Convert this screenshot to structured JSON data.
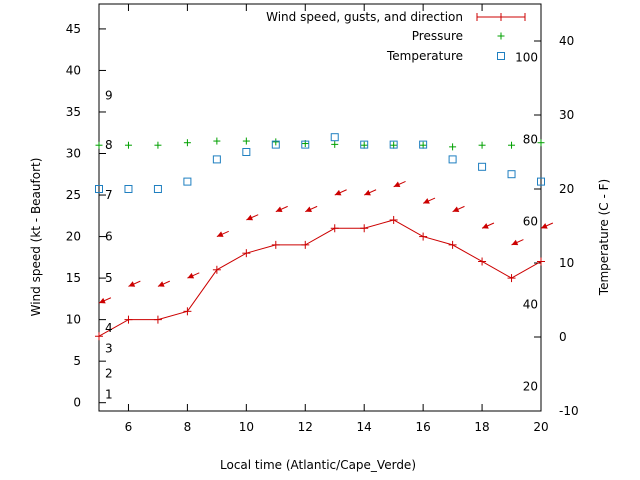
{
  "chart_data": {
    "type": "line",
    "xlabel": "Local time (Atlantic/Cape_Verde)",
    "ylabel": "Wind speed (kt - Beaufort)",
    "y2label": "Temperature (C - F)",
    "xlim": [
      5,
      20
    ],
    "ylim": [
      -1,
      48
    ],
    "y2lim": [
      -10,
      45
    ],
    "x_ticks": [
      6,
      8,
      10,
      12,
      14,
      16,
      18,
      20
    ],
    "y_ticks": [
      0,
      5,
      10,
      15,
      20,
      25,
      30,
      35,
      40,
      45
    ],
    "y2_ticks": [
      -10,
      0,
      10,
      20,
      30,
      40
    ],
    "beaufort_labels": [
      {
        "label": "1",
        "kt": 1
      },
      {
        "label": "2",
        "kt": 3.5
      },
      {
        "label": "3",
        "kt": 6.5
      },
      {
        "label": "4",
        "kt": 9
      },
      {
        "label": "5",
        "kt": 15
      },
      {
        "label": "6",
        "kt": 20
      },
      {
        "label": "7",
        "kt": 25
      },
      {
        "label": "8",
        "kt": 31
      },
      {
        "label": "9",
        "kt": 37
      }
    ],
    "fahrenheit_labels": [
      {
        "label": "20",
        "c": -6.7
      },
      {
        "label": "40",
        "c": 4.4
      },
      {
        "label": "60",
        "c": 15.6
      },
      {
        "label": "80",
        "c": 26.7
      },
      {
        "label": "100",
        "c": 37.8
      }
    ],
    "legend": {
      "position": "top-right",
      "entries": [
        "Wind speed, gusts, and direction",
        "Pressure",
        "Temperature"
      ]
    },
    "series": [
      {
        "name": "Wind speed, gusts, and direction",
        "x": [
          5,
          6,
          7,
          8,
          9,
          10,
          11,
          12,
          13,
          14,
          15,
          16,
          17,
          18,
          19,
          20
        ],
        "values": [
          8,
          10,
          10,
          11,
          16,
          18,
          19,
          19,
          21,
          21,
          22,
          20,
          19,
          17,
          15,
          17
        ]
      },
      {
        "name": "Wind direction arrows",
        "x": [
          5,
          6,
          7,
          8,
          9,
          10,
          11,
          12,
          13,
          14,
          15,
          16,
          17,
          18,
          19,
          20
        ],
        "values": [
          12,
          14,
          14,
          15,
          20,
          22,
          23,
          23,
          25,
          25,
          26,
          24,
          23,
          21,
          19,
          21
        ]
      },
      {
        "name": "Pressure",
        "x": [
          5,
          6,
          7,
          8,
          9,
          10,
          11,
          12,
          13,
          14,
          15,
          16,
          17,
          18,
          19,
          20
        ],
        "values": [
          31,
          31,
          31,
          31.3,
          31.5,
          31.5,
          31.4,
          31.2,
          31.1,
          31,
          31,
          31,
          30.8,
          31,
          31,
          31.3
        ]
      },
      {
        "name": "Temperature",
        "x": [
          5,
          6,
          7,
          8,
          9,
          10,
          11,
          12,
          13,
          14,
          15,
          16,
          17,
          18,
          19,
          20
        ],
        "values": [
          20,
          20,
          20,
          21,
          24,
          25,
          26,
          26,
          27,
          26,
          26,
          26,
          24,
          23,
          22,
          21
        ]
      }
    ]
  }
}
